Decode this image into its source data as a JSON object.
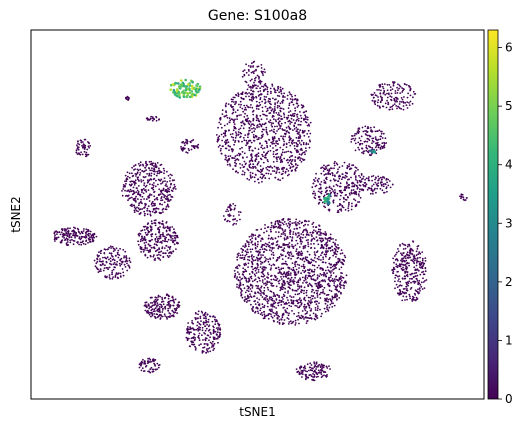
{
  "chart_data": {
    "type": "scatter",
    "title": "Gene: S100a8",
    "xlabel": "tSNE1",
    "ylabel": "tSNE2",
    "x_ticks": false,
    "y_ticks": false,
    "colormap": "viridis",
    "colorbar": {
      "min": 0,
      "max": 6.3,
      "ticks": [
        0,
        1,
        2,
        3,
        4,
        5,
        6
      ],
      "colors": [
        "#440154",
        "#482878",
        "#3e4989",
        "#31688e",
        "#26828e",
        "#1f9e89",
        "#35b779",
        "#6ece58",
        "#b5de2b",
        "#fde725"
      ]
    },
    "xlim": [
      0,
      100
    ],
    "ylim": [
      0,
      100
    ],
    "clusters": [
      {
        "id": "large-center",
        "x": 57.4,
        "y": 34.5,
        "rx": 12.5,
        "ry": 14.5,
        "n": 1500,
        "value": 0.05
      },
      {
        "id": "top-center",
        "x": 51.5,
        "y": 72.0,
        "rx": 10.5,
        "ry": 13.5,
        "n": 1000,
        "value": 0.05
      },
      {
        "id": "top-center-tip",
        "x": 49.2,
        "y": 88.0,
        "rx": 2.5,
        "ry": 4.0,
        "n": 60,
        "value": 0.05
      },
      {
        "id": "right-mid",
        "x": 68.0,
        "y": 57.5,
        "rx": 6.0,
        "ry": 7.0,
        "n": 300,
        "value": 0.05
      },
      {
        "id": "right-upper",
        "x": 74.5,
        "y": 70.0,
        "rx": 4.0,
        "ry": 4.0,
        "n": 130,
        "value": 0.05
      },
      {
        "id": "right-mid-tail",
        "x": 76.0,
        "y": 58.0,
        "rx": 4.0,
        "ry": 2.5,
        "n": 80,
        "value": 0.05
      },
      {
        "id": "top-right",
        "x": 80.0,
        "y": 82.0,
        "rx": 5.0,
        "ry": 4.0,
        "n": 150,
        "value": 0.05
      },
      {
        "id": "right-lower",
        "x": 83.5,
        "y": 34.5,
        "rx": 4.0,
        "ry": 8.5,
        "n": 300,
        "value": 0.05
      },
      {
        "id": "left-mid",
        "x": 26.0,
        "y": 57.0,
        "rx": 6.0,
        "ry": 7.5,
        "n": 400,
        "value": 0.05
      },
      {
        "id": "left-mid-lower",
        "x": 28.0,
        "y": 43.0,
        "rx": 4.5,
        "ry": 5.5,
        "n": 250,
        "value": 0.05
      },
      {
        "id": "left-far",
        "x": 9.5,
        "y": 44.0,
        "rx": 5.0,
        "ry": 2.5,
        "n": 180,
        "value": 0.05
      },
      {
        "id": "left-lower",
        "x": 18.0,
        "y": 37.0,
        "rx": 4.0,
        "ry": 4.5,
        "n": 150,
        "value": 0.05
      },
      {
        "id": "bottom-left",
        "x": 29.0,
        "y": 25.0,
        "rx": 4.0,
        "ry": 3.5,
        "n": 180,
        "value": 0.05
      },
      {
        "id": "bottom-left-2",
        "x": 38.0,
        "y": 18.0,
        "rx": 4.0,
        "ry": 6.0,
        "n": 220,
        "value": 0.05
      },
      {
        "id": "bottom-small",
        "x": 26.0,
        "y": 9.0,
        "rx": 2.5,
        "ry": 2.0,
        "n": 60,
        "value": 0.05
      },
      {
        "id": "bottom-right",
        "x": 62.5,
        "y": 7.5,
        "rx": 4.0,
        "ry": 2.5,
        "n": 120,
        "value": 0.05
      },
      {
        "id": "left-upper",
        "x": 11.5,
        "y": 68.0,
        "rx": 1.8,
        "ry": 2.5,
        "n": 50,
        "value": 0.05
      },
      {
        "id": "mid-upper-small",
        "x": 35.0,
        "y": 68.5,
        "rx": 2.0,
        "ry": 2.0,
        "n": 45,
        "value": 0.05
      },
      {
        "id": "dot-a",
        "x": 27.0,
        "y": 76.0,
        "rx": 1.5,
        "ry": 0.7,
        "n": 20,
        "value": 0.05
      },
      {
        "id": "dot-b",
        "x": 21.0,
        "y": 81.5,
        "rx": 0.7,
        "ry": 0.8,
        "n": 12,
        "value": 0.05
      },
      {
        "id": "dot-c",
        "x": 95.5,
        "y": 54.5,
        "rx": 1.0,
        "ry": 1.2,
        "n": 14,
        "value": 0.05
      },
      {
        "id": "mid-gap",
        "x": 44.5,
        "y": 50.0,
        "rx": 2.0,
        "ry": 3.0,
        "n": 40,
        "value": 0.05
      },
      {
        "id": "yellow-hot",
        "x": 34.0,
        "y": 84.0,
        "rx": 3.5,
        "ry": 2.5,
        "n": 90,
        "value": 4.8
      },
      {
        "id": "teal-spot-a",
        "x": 65.5,
        "y": 54.0,
        "rx": 0.8,
        "ry": 1.5,
        "n": 18,
        "value": 3.1
      },
      {
        "id": "teal-spot-b",
        "x": 75.5,
        "y": 67.0,
        "rx": 0.6,
        "ry": 0.6,
        "n": 6,
        "value": 3.3
      }
    ]
  }
}
